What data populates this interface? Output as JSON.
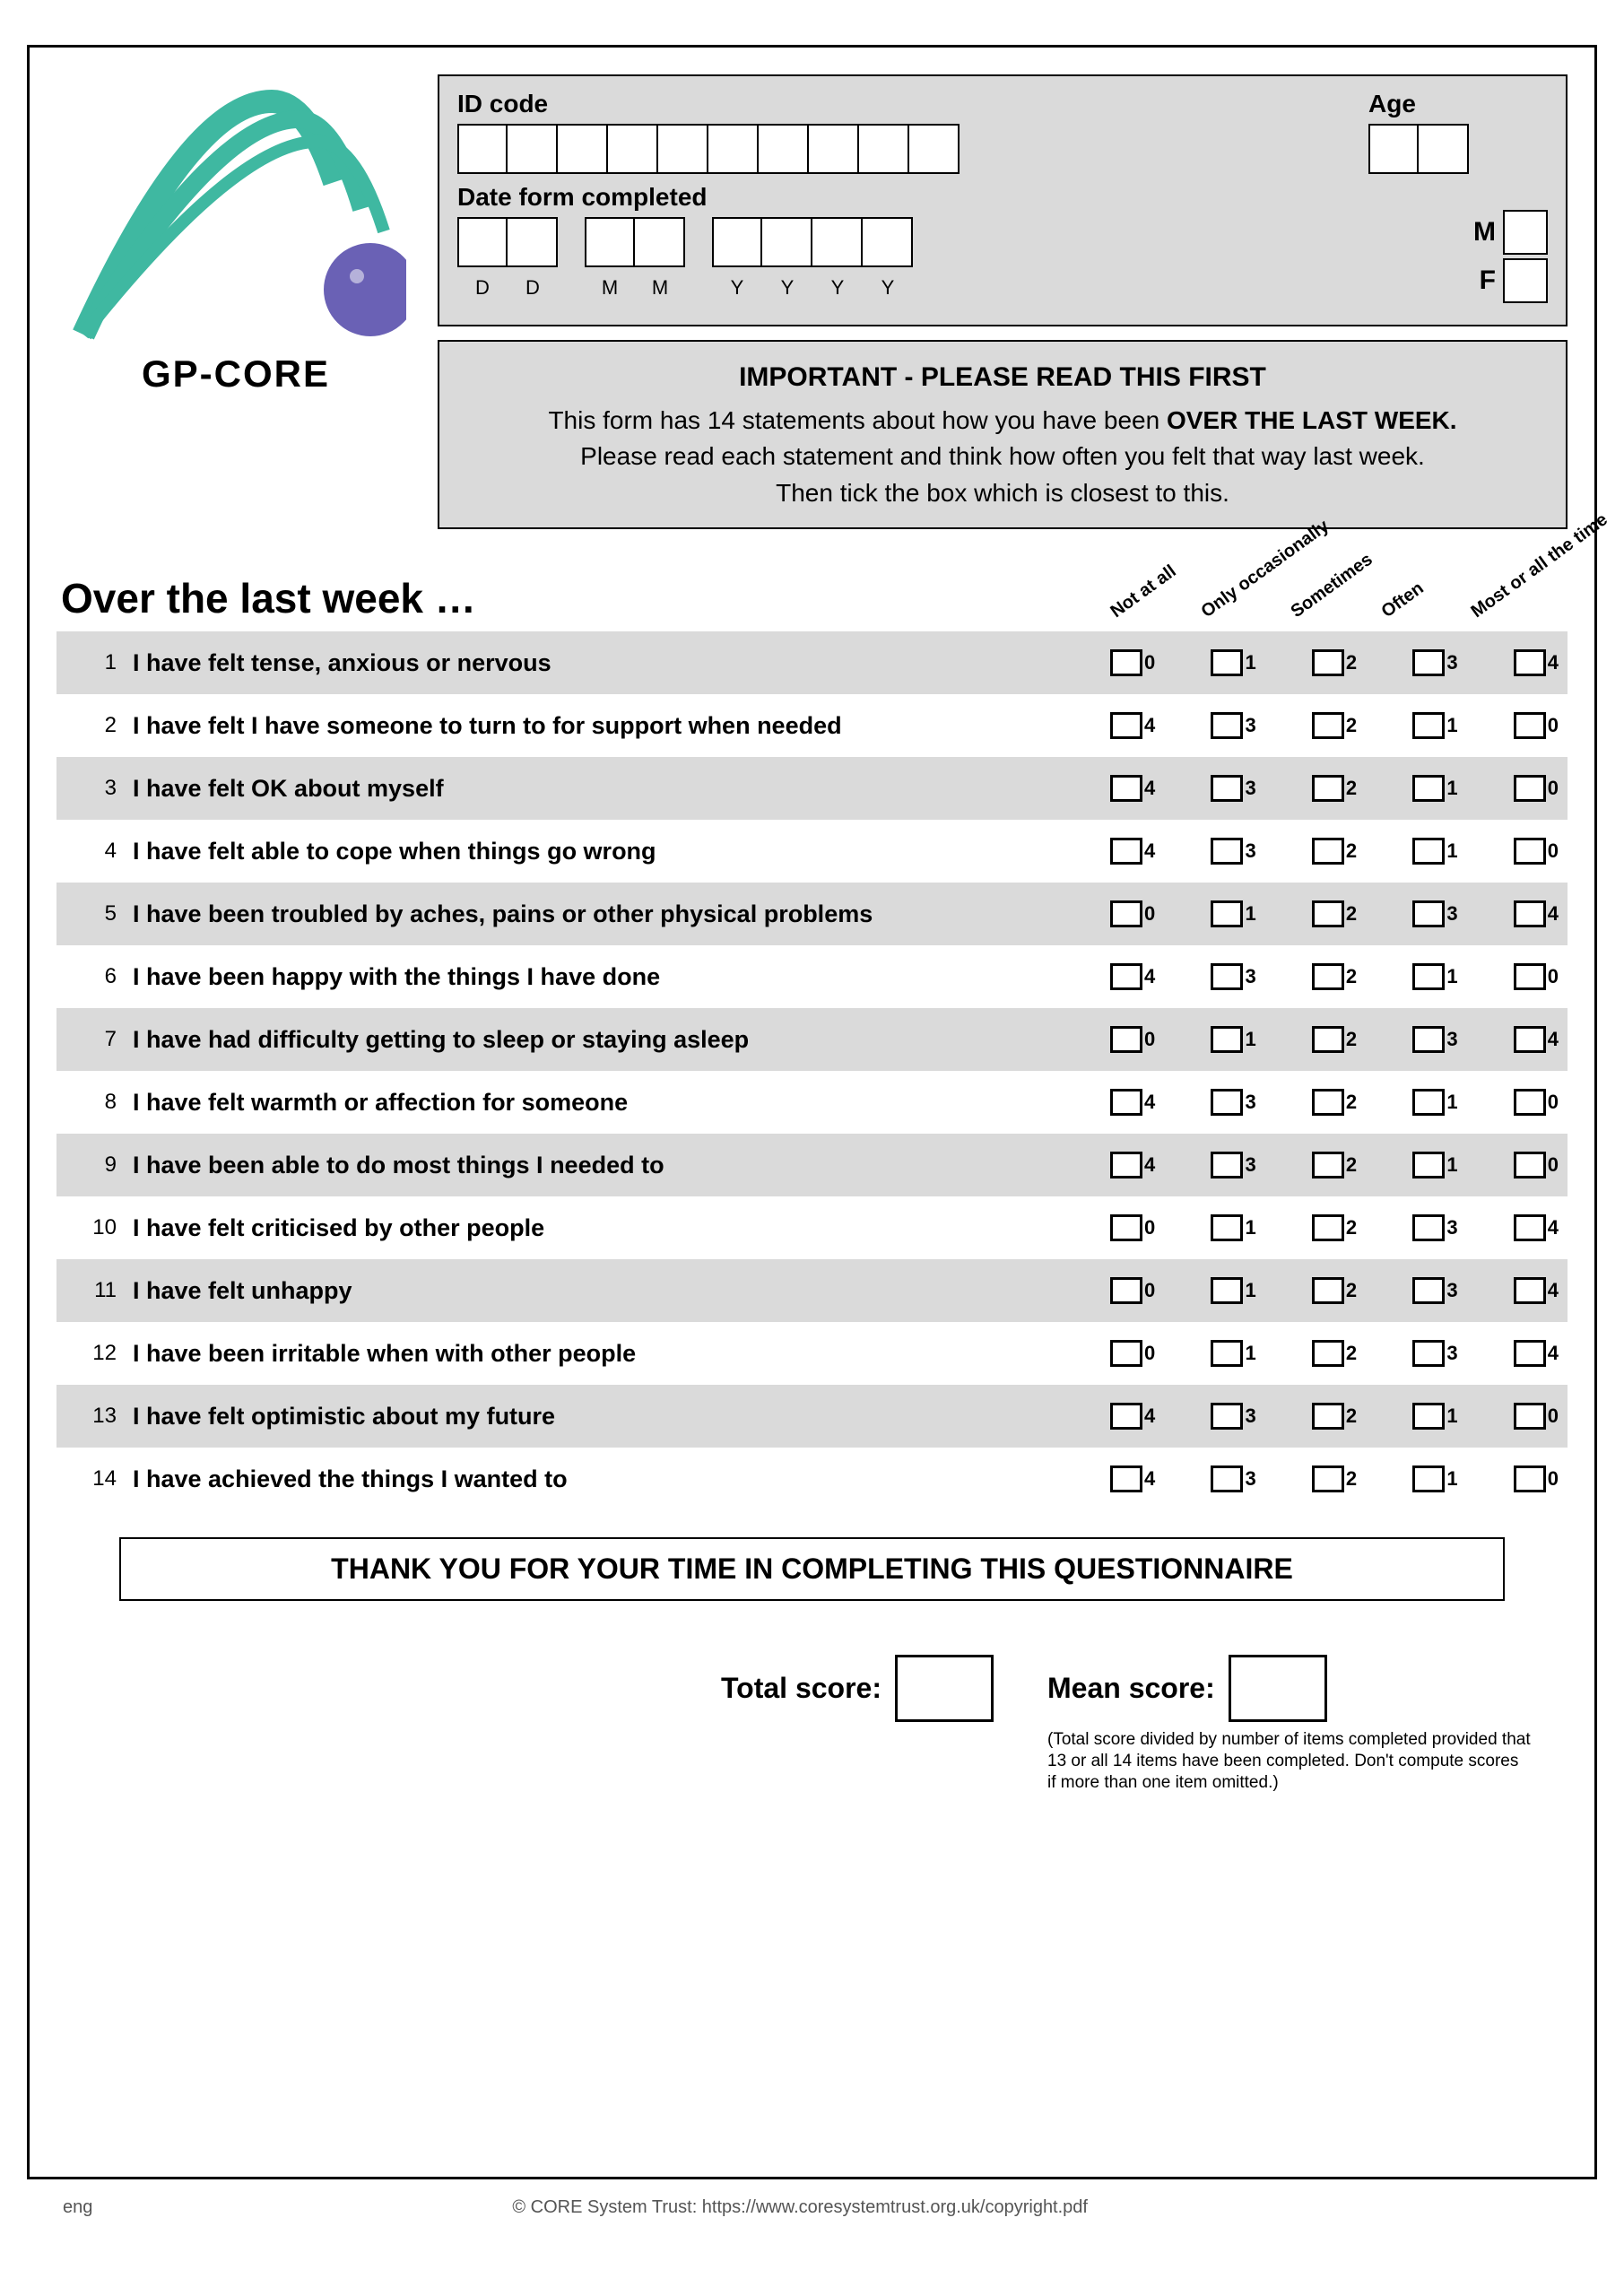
{
  "colors": {
    "shade": "#dadada",
    "border": "#000000",
    "logo_green": "#3fb8a1",
    "logo_purple": "#6a61b5"
  },
  "logo_title": "GP-CORE",
  "id_box": {
    "id_label": "ID code",
    "date_label": "Date form completed",
    "date_sublabels": [
      "D",
      "D",
      "M",
      "M",
      "Y",
      "Y",
      "Y",
      "Y"
    ],
    "id_cells": 10,
    "age_label": "Age",
    "sex_m": "M",
    "sex_f": "F"
  },
  "important": {
    "title": "IMPORTANT - PLEASE READ THIS FIRST",
    "line1_a": "This form has 14 statements about how you have been ",
    "line1_b": "OVER THE LAST WEEK.",
    "line2": "Please read each statement and think how often you felt that way last week.",
    "line3": "Then tick the box which is closest to this."
  },
  "section_title": "Over the last week …",
  "option_headers": [
    "Not at all",
    "Only occasionally",
    "Sometimes",
    "Often",
    "Most or all the time"
  ],
  "questions": [
    {
      "n": 1,
      "text": "I have felt tense, anxious or nervous",
      "values": [
        0,
        1,
        2,
        3,
        4
      ],
      "shade": true
    },
    {
      "n": 2,
      "text": "I have felt I have someone to turn to for support when needed",
      "values": [
        4,
        3,
        2,
        1,
        0
      ],
      "shade": false
    },
    {
      "n": 3,
      "text": "I have felt OK about myself",
      "values": [
        4,
        3,
        2,
        1,
        0
      ],
      "shade": true
    },
    {
      "n": 4,
      "text": "I have felt able to cope when things go wrong",
      "values": [
        4,
        3,
        2,
        1,
        0
      ],
      "shade": false
    },
    {
      "n": 5,
      "text": "I have been troubled by aches, pains or other physical problems",
      "values": [
        0,
        1,
        2,
        3,
        4
      ],
      "shade": true
    },
    {
      "n": 6,
      "text": "I have been happy with the things I have done",
      "values": [
        4,
        3,
        2,
        1,
        0
      ],
      "shade": false
    },
    {
      "n": 7,
      "text": "I have had difficulty getting to sleep or staying asleep",
      "values": [
        0,
        1,
        2,
        3,
        4
      ],
      "shade": true
    },
    {
      "n": 8,
      "text": "I have felt warmth or affection for someone",
      "values": [
        4,
        3,
        2,
        1,
        0
      ],
      "shade": false
    },
    {
      "n": 9,
      "text": "I have been able to do most things I needed to",
      "values": [
        4,
        3,
        2,
        1,
        0
      ],
      "shade": true
    },
    {
      "n": 10,
      "text": "I have felt criticised by other people",
      "values": [
        0,
        1,
        2,
        3,
        4
      ],
      "shade": false
    },
    {
      "n": 11,
      "text": "I have felt unhappy",
      "values": [
        0,
        1,
        2,
        3,
        4
      ],
      "shade": true
    },
    {
      "n": 12,
      "text": "I have been irritable when with other people",
      "values": [
        0,
        1,
        2,
        3,
        4
      ],
      "shade": false
    },
    {
      "n": 13,
      "text": "I have felt optimistic about my future",
      "values": [
        4,
        3,
        2,
        1,
        0
      ],
      "shade": true
    },
    {
      "n": 14,
      "text": "I have achieved the things I wanted to",
      "values": [
        4,
        3,
        2,
        1,
        0
      ],
      "shade": false
    }
  ],
  "thankyou": "THANK YOU FOR YOUR TIME IN COMPLETING THIS QUESTIONNAIRE",
  "total_label": "Total score:",
  "mean_label": "Mean score:",
  "score_note": "(Total score divided by number of items completed provided that 13 or all 14 items have been completed.  Don't compute scores if more than one item omitted.)",
  "footer_lang": "eng",
  "footer_copy": "© CORE System Trust: https://www.coresystemtrust.org.uk/copyright.pdf"
}
